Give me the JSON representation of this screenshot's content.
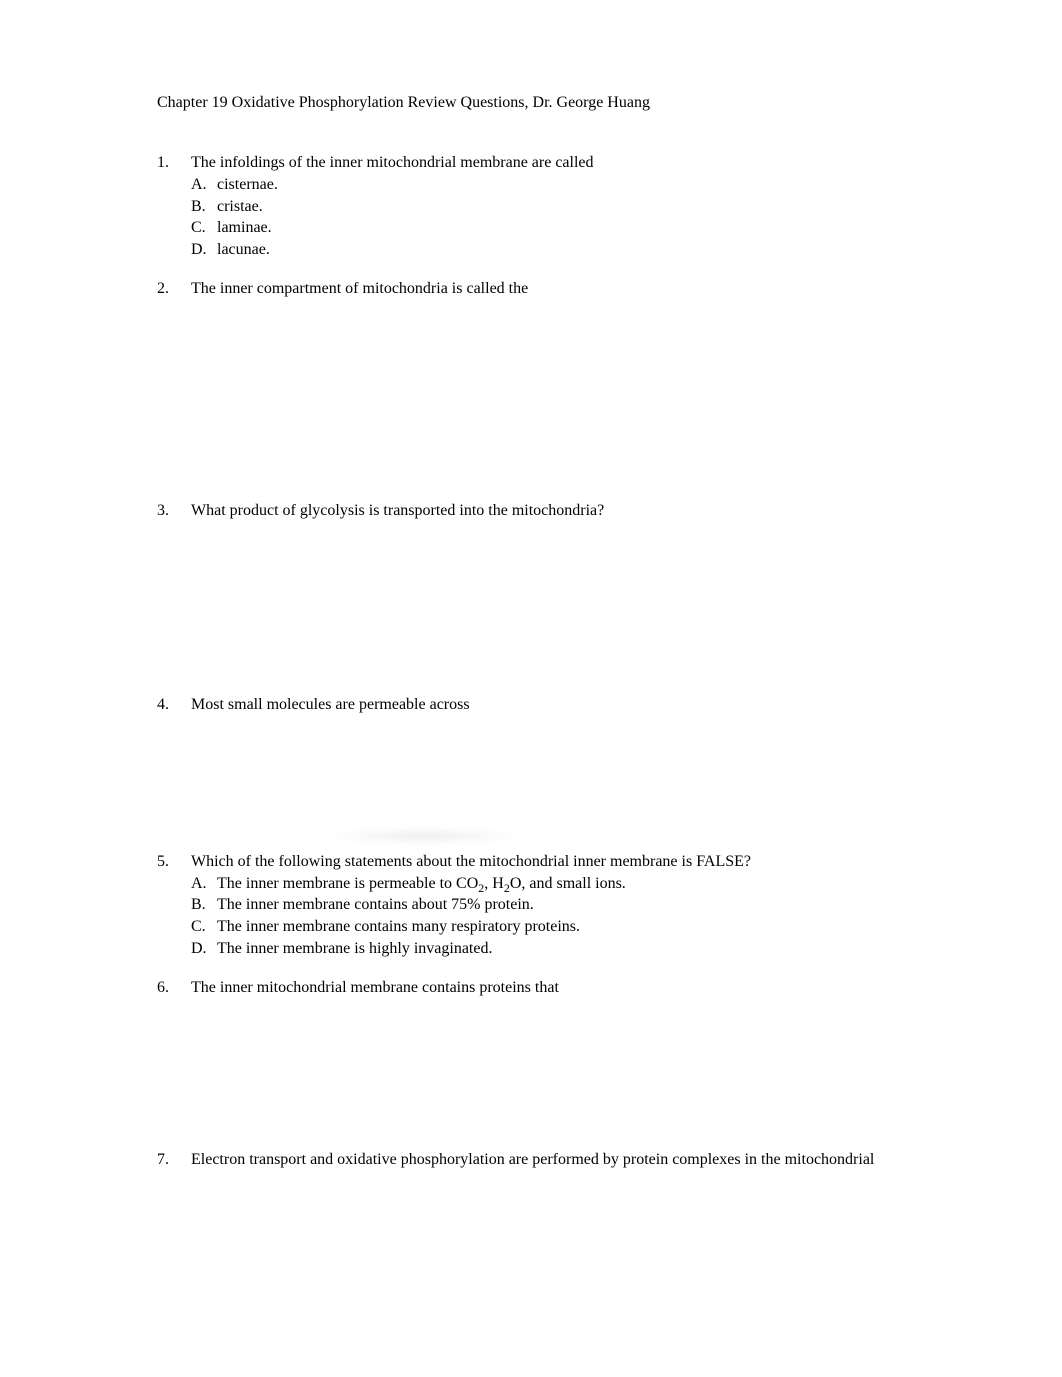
{
  "title": "Chapter 19 Oxidative Phosphorylation Review Questions, Dr. George Huang",
  "questions": [
    {
      "num": "1.",
      "text": " The infoldings of the inner mitochondrial membrane are called",
      "options": [
        {
          "label": "A.",
          "text": "cisternae."
        },
        {
          "label": "B.",
          "text": "cristae."
        },
        {
          "label": "C.",
          "text": "laminae."
        },
        {
          "label": "D.",
          "text": "lacunae."
        }
      ],
      "spaceAfter": 18
    },
    {
      "num": "2.",
      "text": "The inner compartment of mitochondria is called the",
      "options": [],
      "spaceAfter": 200
    },
    {
      "num": "3.",
      "text": "What product of glycolysis is transported into the mitochondria?",
      "options": [],
      "spaceAfter": 172
    },
    {
      "num": "4.",
      "text": "Most small molecules are permeable across",
      "options": [],
      "spaceAfter": 130,
      "blurAfter": true
    },
    {
      "num": "5.",
      "text": "Which of the following statements about the mitochondrial inner membrane is FALSE?",
      "options": [
        {
          "label": "A.",
          "html": "The inner membrane is permeable to CO<sub>2</sub>, H<sub>2</sub>O, and small ions."
        },
        {
          "label": "B.",
          "text": "The inner membrane contains about 75% protein."
        },
        {
          "label": "C.",
          "text": "The inner membrane contains many respiratory proteins."
        },
        {
          "label": "D.",
          "text": "The inner membrane is highly invaginated."
        }
      ],
      "spaceAfter": 18
    },
    {
      "num": "6.",
      "text": "The inner mitochondrial membrane contains proteins that",
      "options": [],
      "spaceAfter": 150
    },
    {
      "num": "7.",
      "text": " Electron transport and oxidative phosphorylation are performed by protein complexes in the mitochondrial",
      "options": [],
      "spaceAfter": 0
    }
  ]
}
